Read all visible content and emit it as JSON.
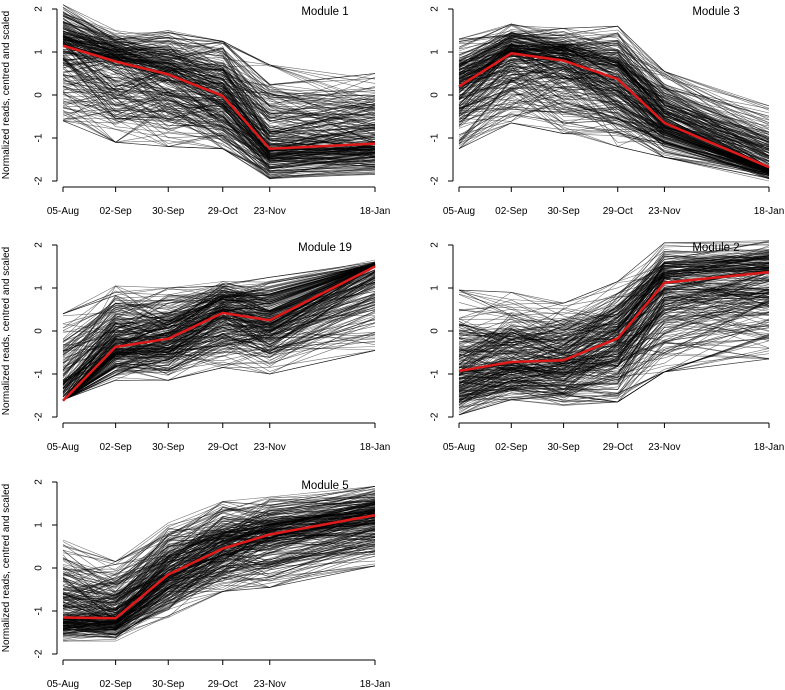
{
  "colors": {
    "profile": "#000000",
    "mean": "#e01a1a"
  },
  "chart_data": [
    {
      "type": "line",
      "title": "Module 1",
      "ylabel": "Normalized reads, centred and scaled",
      "xlabel": "",
      "categories": [
        "05-Aug",
        "02-Sep",
        "30-Sep",
        "29-Oct",
        "23-Nov",
        "18-Jan"
      ],
      "x_days": [
        0,
        28,
        56,
        85,
        110,
        166
      ],
      "ylim": [
        -2,
        2
      ],
      "yticks": [
        "-2",
        "-1",
        "0",
        "1",
        "2"
      ],
      "mean": [
        1.15,
        0.78,
        0.48,
        -0.02,
        -1.25,
        -1.13
      ],
      "band_upper": [
        2.05,
        1.45,
        1.45,
        1.2,
        0.65,
        0.45
      ],
      "band_lower": [
        -0.55,
        -1.05,
        -1.15,
        -1.2,
        -1.9,
        -1.8
      ]
    },
    {
      "type": "line",
      "title": "Module 3",
      "ylabel": "",
      "xlabel": "",
      "categories": [
        "05-Aug",
        "02-Sep",
        "30-Sep",
        "29-Oct",
        "23-Nov",
        "18-Jan"
      ],
      "x_days": [
        0,
        28,
        56,
        85,
        110,
        166
      ],
      "ylim": [
        -2,
        2
      ],
      "yticks": [
        "-2",
        "-1",
        "0",
        "1",
        "2"
      ],
      "mean": [
        0.2,
        0.97,
        0.8,
        0.37,
        -0.65,
        -1.68
      ],
      "band_upper": [
        1.25,
        1.6,
        1.5,
        1.55,
        0.5,
        -0.3
      ],
      "band_lower": [
        -1.2,
        -0.6,
        -0.85,
        -1.15,
        -1.4,
        -1.95
      ]
    },
    {
      "type": "line",
      "title": "Module 19",
      "ylabel": "Normalized reads, centred and scaled",
      "xlabel": "",
      "categories": [
        "05-Aug",
        "02-Sep",
        "30-Sep",
        "29-Oct",
        "23-Nov",
        "18-Jan"
      ],
      "x_days": [
        0,
        28,
        56,
        85,
        110,
        166
      ],
      "ylim": [
        -2,
        2
      ],
      "yticks": [
        "-2",
        "-1",
        "0",
        "1",
        "2"
      ],
      "mean": [
        -1.62,
        -0.37,
        -0.18,
        0.42,
        0.25,
        1.5
      ],
      "band_upper": [
        0.35,
        1.0,
        0.95,
        1.1,
        1.2,
        1.6
      ],
      "band_lower": [
        -1.6,
        -1.1,
        -1.1,
        -0.8,
        -0.95,
        -0.4
      ]
    },
    {
      "type": "line",
      "title": "Module 2",
      "ylabel": "",
      "xlabel": "",
      "categories": [
        "05-Aug",
        "02-Sep",
        "30-Sep",
        "29-Oct",
        "23-Nov",
        "18-Jan"
      ],
      "x_days": [
        0,
        28,
        56,
        85,
        110,
        166
      ],
      "ylim": [
        -2,
        2
      ],
      "yticks": [
        "-2",
        "-1",
        "0",
        "1",
        "2"
      ],
      "mean": [
        -0.93,
        -0.72,
        -0.68,
        -0.17,
        1.12,
        1.37
      ],
      "band_upper": [
        0.9,
        0.85,
        0.6,
        1.1,
        2.0,
        2.05
      ],
      "band_lower": [
        -1.9,
        -1.55,
        -1.7,
        -1.6,
        -0.9,
        -0.6
      ]
    },
    {
      "type": "line",
      "title": "Module 5",
      "ylabel": "Normalized reads, centred and scaled",
      "xlabel": "",
      "categories": [
        "05-Aug",
        "02-Sep",
        "30-Sep",
        "29-Oct",
        "23-Nov",
        "18-Jan"
      ],
      "x_days": [
        0,
        28,
        56,
        85,
        110,
        166
      ],
      "ylim": [
        -2,
        2
      ],
      "yticks": [
        "-2",
        "-1",
        "0",
        "1",
        "2"
      ],
      "mean": [
        -1.15,
        -1.17,
        -0.15,
        0.45,
        0.78,
        1.23
      ],
      "band_upper": [
        0.6,
        0.1,
        1.0,
        1.5,
        1.6,
        1.85
      ],
      "band_lower": [
        -1.65,
        -1.65,
        -1.1,
        -0.5,
        -0.4,
        0.1
      ]
    }
  ]
}
